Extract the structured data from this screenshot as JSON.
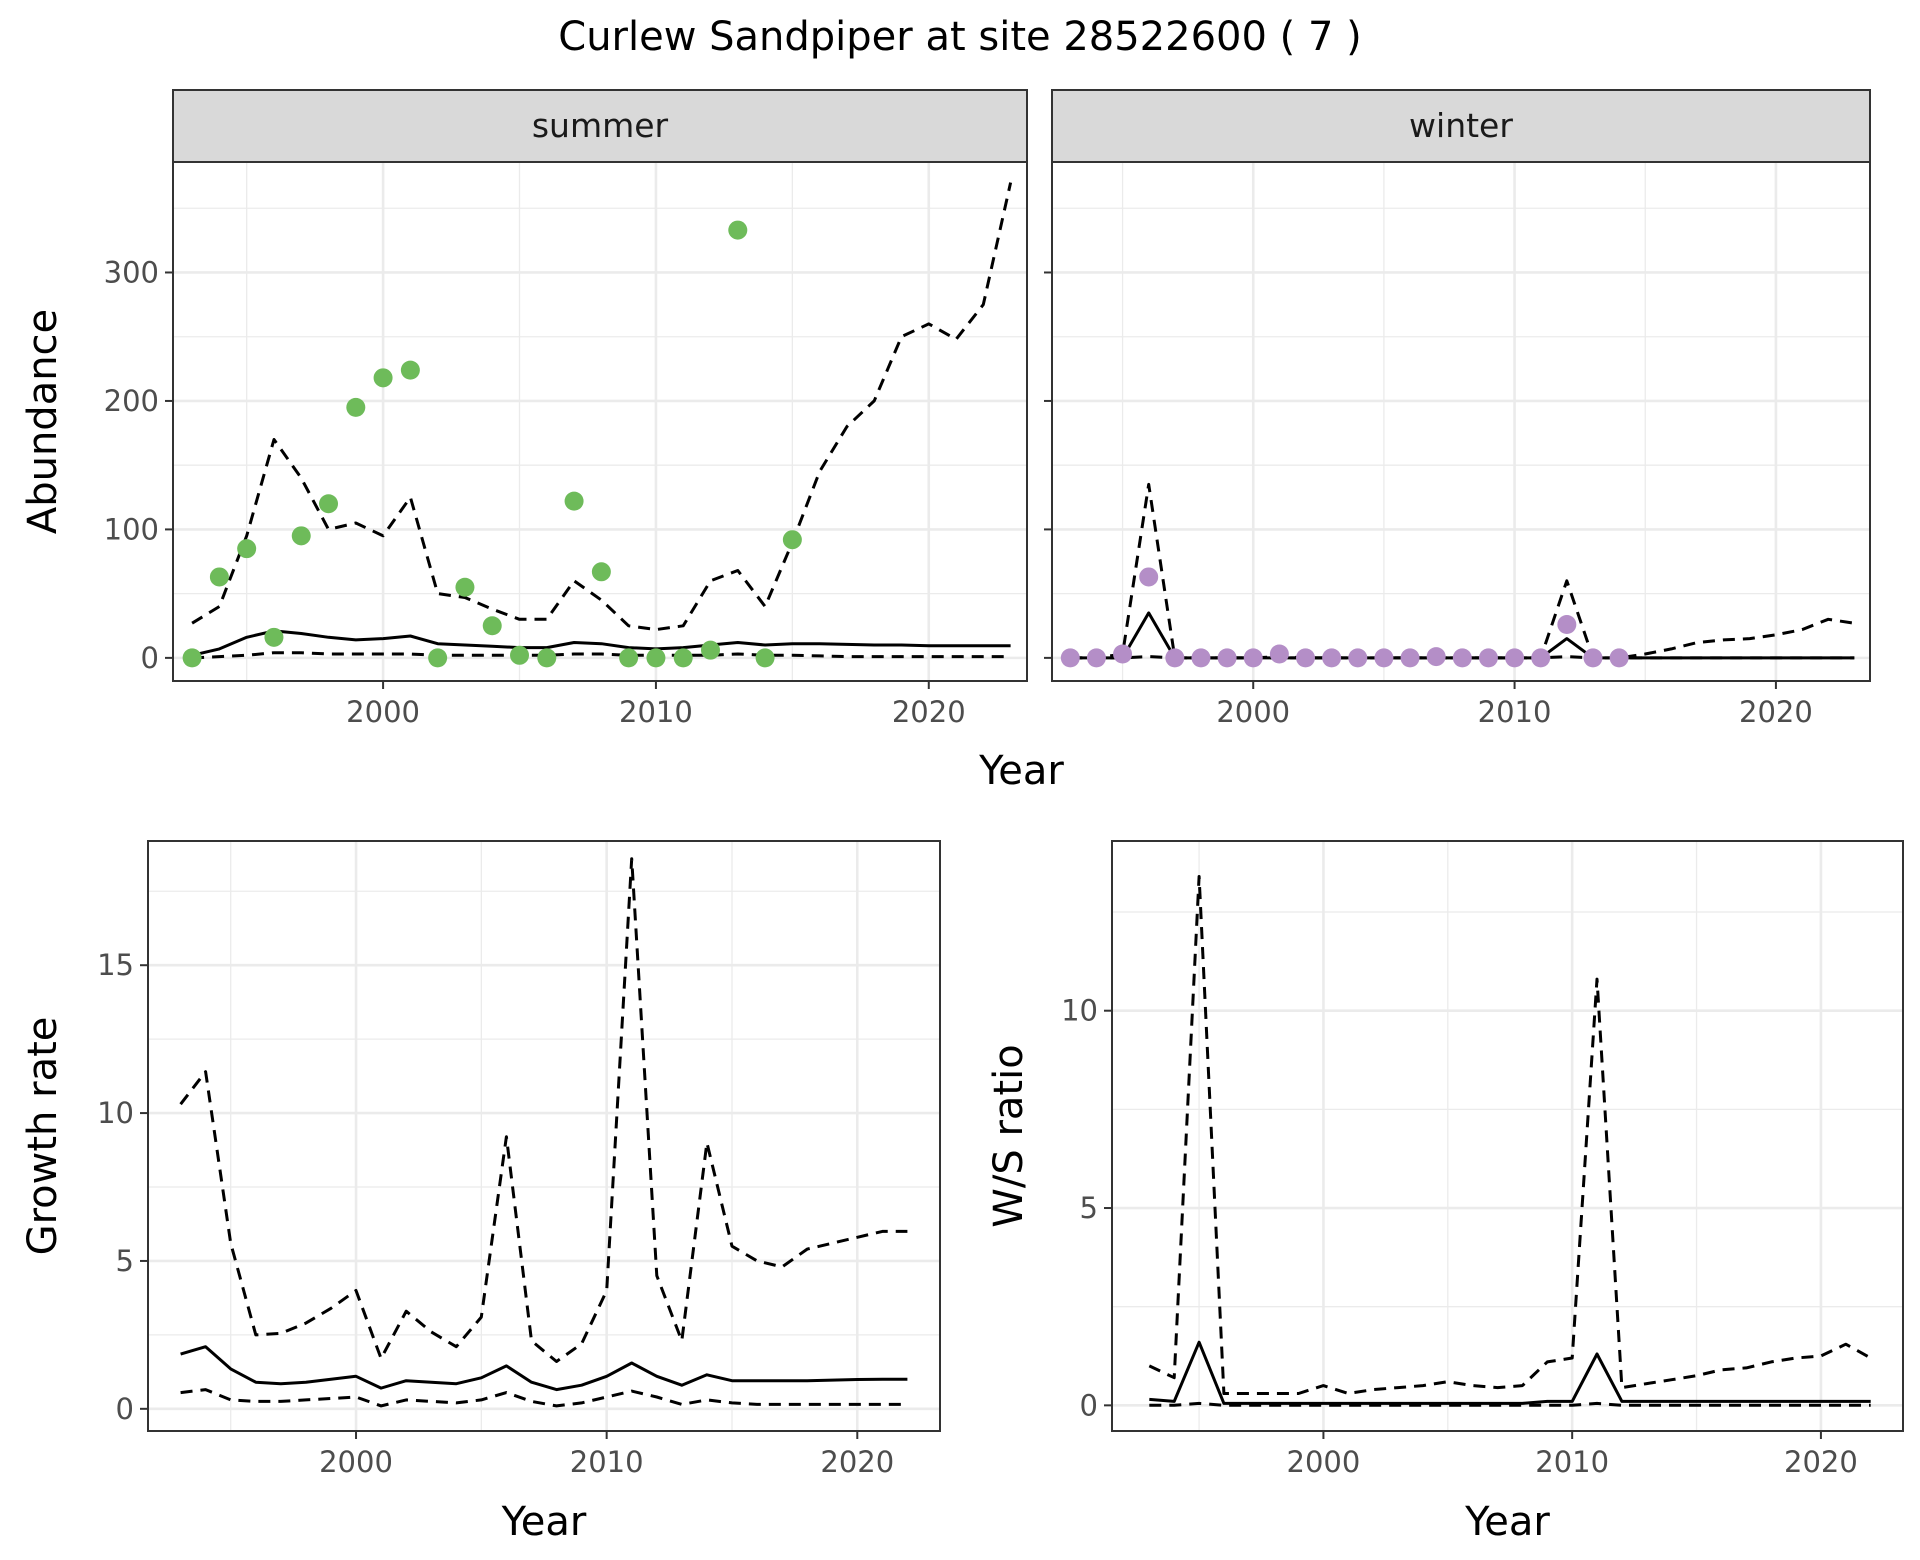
{
  "title": "Curlew Sandpiper at site 28522600 ( 7 )",
  "colors": {
    "summer_points": "#6ebb5a",
    "winter_points": "#b48ec7"
  },
  "chart_data": [
    {
      "id": "abundance-summer",
      "type": "line",
      "strip": "summer",
      "ylabel": "Abundance",
      "xlabel": "Year",
      "xlim": [
        1992.3,
        2023.6
      ],
      "ylim": [
        -18,
        386
      ],
      "xticks": [
        2000,
        2010,
        2020
      ],
      "yticks": [
        0,
        100,
        200,
        300
      ],
      "ytick_labels": [
        "0",
        "100",
        "200",
        "300"
      ],
      "points": {
        "x": [
          1993,
          1994,
          1995,
          1996,
          1997,
          1998,
          1999,
          2000,
          2001,
          2002,
          2003,
          2004,
          2005,
          2006,
          2007,
          2008,
          2009,
          2010,
          2011,
          2012,
          2013,
          2014,
          2015
        ],
        "y": [
          0,
          63,
          85,
          16,
          95,
          120,
          195,
          218,
          224,
          0,
          55,
          25,
          2,
          0,
          122,
          67,
          0,
          0,
          0,
          6,
          333,
          0,
          92
        ]
      },
      "series": [
        {
          "style": "solid",
          "x": [
            1993,
            1994,
            1995,
            1996,
            1997,
            1998,
            1999,
            2000,
            2001,
            2002,
            2003,
            2004,
            2005,
            2006,
            2007,
            2008,
            2009,
            2010,
            2011,
            2012,
            2013,
            2014,
            2015,
            2016,
            2017,
            2018,
            2019,
            2020,
            2021,
            2022,
            2023
          ],
          "y": [
            2,
            7,
            16,
            21,
            19,
            16,
            14,
            15,
            17,
            11,
            10,
            9,
            8,
            8,
            12,
            11,
            8,
            7,
            8,
            10,
            12,
            10,
            11,
            11,
            10.5,
            10,
            10,
            9.5,
            9.5,
            9.5,
            9.5
          ]
        },
        {
          "style": "dashed",
          "x": [
            1993,
            1994,
            1995,
            1996,
            1997,
            1998,
            1999,
            2000,
            2001,
            2002,
            2003,
            2004,
            2005,
            2006,
            2007,
            2008,
            2009,
            2010,
            2011,
            2012,
            2013,
            2014,
            2015,
            2016,
            2017,
            2018,
            2019,
            2020,
            2021,
            2022,
            2023
          ],
          "y": [
            27,
            40,
            95,
            170,
            140,
            100,
            105,
            95,
            125,
            50,
            47,
            38,
            30,
            30,
            60,
            45,
            25,
            22,
            25,
            60,
            68,
            40,
            90,
            145,
            180,
            200,
            250,
            260,
            248,
            275,
            370
          ]
        },
        {
          "style": "dashed",
          "x": [
            1993,
            1994,
            1995,
            1996,
            1997,
            1998,
            1999,
            2000,
            2001,
            2002,
            2003,
            2004,
            2005,
            2006,
            2007,
            2008,
            2009,
            2010,
            2011,
            2012,
            2013,
            2014,
            2015,
            2016,
            2017,
            2018,
            2019,
            2020,
            2021,
            2022,
            2023
          ],
          "y": [
            0,
            1,
            2,
            4,
            4,
            3,
            3,
            3,
            3,
            2,
            2,
            2,
            2,
            2,
            3,
            3,
            2,
            2,
            2,
            2,
            3,
            2,
            2,
            1.5,
            1,
            1,
            1,
            1,
            1,
            1,
            1
          ]
        }
      ]
    },
    {
      "id": "abundance-winter",
      "type": "line",
      "strip": "winter",
      "ylabel": "",
      "xlabel": "",
      "xlim": [
        1992.3,
        2023.6
      ],
      "ylim": [
        -18,
        386
      ],
      "xticks": [
        2000,
        2010,
        2020
      ],
      "yticks": [
        0,
        100,
        200,
        300
      ],
      "ytick_labels": [],
      "points": {
        "x": [
          1993,
          1994,
          1995,
          1996,
          1997,
          1998,
          1999,
          2000,
          2001,
          2002,
          2003,
          2004,
          2005,
          2006,
          2007,
          2008,
          2009,
          2010,
          2011,
          2012,
          2013,
          2014
        ],
        "y": [
          0,
          0,
          3,
          63,
          0,
          0,
          0,
          0,
          3,
          0,
          0,
          0,
          0,
          0,
          1,
          0,
          0,
          0,
          0,
          26,
          0,
          0
        ]
      },
      "series": [
        {
          "style": "solid",
          "x": [
            1993,
            1994,
            1995,
            1996,
            1997,
            1998,
            1999,
            2000,
            2001,
            2002,
            2003,
            2004,
            2005,
            2006,
            2007,
            2008,
            2009,
            2010,
            2011,
            2012,
            2013,
            2014,
            2015,
            2016,
            2017,
            2018,
            2019,
            2020,
            2021,
            2022,
            2023
          ],
          "y": [
            0,
            0,
            0,
            35,
            0,
            0,
            0,
            0,
            0,
            0,
            0,
            0,
            0,
            0,
            0,
            0,
            0,
            0,
            0,
            15,
            0,
            0,
            0,
            0,
            0,
            0,
            0,
            0,
            0,
            0,
            0
          ]
        },
        {
          "style": "dashed",
          "x": [
            1993,
            1994,
            1995,
            1996,
            1997,
            1998,
            1999,
            2000,
            2001,
            2002,
            2003,
            2004,
            2005,
            2006,
            2007,
            2008,
            2009,
            2010,
            2011,
            2012,
            2013,
            2014,
            2015,
            2016,
            2017,
            2018,
            2019,
            2020,
            2021,
            2022,
            2023
          ],
          "y": [
            0,
            0,
            3,
            135,
            0,
            0,
            0,
            0,
            1,
            0,
            0,
            0,
            0,
            0,
            0,
            0,
            0,
            0,
            0,
            60,
            0,
            0,
            3,
            7,
            12,
            14,
            15,
            18,
            22,
            30,
            27
          ]
        },
        {
          "style": "dashed",
          "x": [
            1993,
            1994,
            1995,
            1996,
            1997,
            1998,
            1999,
            2000,
            2001,
            2002,
            2003,
            2004,
            2005,
            2006,
            2007,
            2008,
            2009,
            2010,
            2011,
            2012,
            2013,
            2014,
            2015,
            2016,
            2017,
            2018,
            2019,
            2020,
            2021,
            2022,
            2023
          ],
          "y": [
            0,
            0,
            0,
            1,
            0,
            0,
            0,
            0,
            0,
            0,
            0,
            0,
            0,
            0,
            0,
            0,
            0,
            0,
            0,
            1,
            0,
            0,
            0,
            0,
            0,
            0,
            0,
            0,
            0,
            0,
            0
          ]
        }
      ]
    },
    {
      "id": "growth-rate",
      "type": "line",
      "ylabel": "Growth rate",
      "xlabel": "Year",
      "xlim": [
        1991.7,
        2023.3
      ],
      "ylim": [
        -0.75,
        19.2
      ],
      "xticks": [
        2000,
        2010,
        2020
      ],
      "yticks": [
        0,
        5,
        10,
        15
      ],
      "ytick_labels": [
        "0",
        "5",
        "10",
        "15"
      ],
      "series": [
        {
          "style": "solid",
          "x": [
            1993,
            1994,
            1995,
            1996,
            1997,
            1998,
            1999,
            2000,
            2001,
            2002,
            2003,
            2004,
            2005,
            2006,
            2007,
            2008,
            2009,
            2010,
            2011,
            2012,
            2013,
            2014,
            2015,
            2016,
            2017,
            2018,
            2019,
            2020,
            2021,
            2022
          ],
          "y": [
            1.85,
            2.1,
            1.35,
            0.9,
            0.85,
            0.9,
            1.0,
            1.1,
            0.7,
            0.95,
            0.9,
            0.85,
            1.05,
            1.45,
            0.9,
            0.65,
            0.8,
            1.1,
            1.55,
            1.1,
            0.8,
            1.15,
            0.95,
            0.95,
            0.95,
            0.95,
            0.97,
            0.99,
            1.0,
            1.0
          ]
        },
        {
          "style": "dashed",
          "x": [
            1993,
            1994,
            1995,
            1996,
            1997,
            1998,
            1999,
            2000,
            2001,
            2002,
            2003,
            2004,
            2005,
            2006,
            2007,
            2008,
            2009,
            2010,
            2011,
            2012,
            2013,
            2014,
            2015,
            2016,
            2017,
            2018,
            2019,
            2020,
            2021,
            2022
          ],
          "y": [
            10.3,
            11.4,
            5.6,
            2.5,
            2.55,
            2.9,
            3.4,
            4.0,
            1.7,
            3.3,
            2.6,
            2.1,
            3.1,
            9.2,
            2.3,
            1.6,
            2.2,
            4.0,
            18.6,
            4.5,
            2.3,
            9.0,
            5.5,
            5.0,
            4.8,
            5.4,
            5.6,
            5.8,
            6.0,
            6.0
          ]
        },
        {
          "style": "dashed",
          "x": [
            1993,
            1994,
            1995,
            1996,
            1997,
            1998,
            1999,
            2000,
            2001,
            2002,
            2003,
            2004,
            2005,
            2006,
            2007,
            2008,
            2009,
            2010,
            2011,
            2012,
            2013,
            2014,
            2015,
            2016,
            2017,
            2018,
            2019,
            2020,
            2021,
            2022
          ],
          "y": [
            0.55,
            0.65,
            0.3,
            0.25,
            0.25,
            0.3,
            0.35,
            0.4,
            0.1,
            0.3,
            0.25,
            0.2,
            0.3,
            0.55,
            0.25,
            0.1,
            0.2,
            0.4,
            0.6,
            0.4,
            0.15,
            0.3,
            0.2,
            0.15,
            0.15,
            0.15,
            0.15,
            0.15,
            0.15,
            0.15
          ]
        }
      ]
    },
    {
      "id": "ws-ratio",
      "type": "line",
      "ylabel": "W/S ratio",
      "xlabel": "Year",
      "xlim": [
        1991.5,
        2023.3
      ],
      "ylim": [
        -0.65,
        14.3
      ],
      "xticks": [
        2000,
        2010,
        2020
      ],
      "yticks": [
        0,
        5,
        10
      ],
      "ytick_labels": [
        "0",
        "5",
        "10"
      ],
      "series": [
        {
          "style": "solid",
          "x": [
            1993,
            1994,
            1995,
            1996,
            1997,
            1998,
            1999,
            2000,
            2001,
            2002,
            2003,
            2004,
            2005,
            2006,
            2007,
            2008,
            2009,
            2010,
            2011,
            2012,
            2013,
            2014,
            2015,
            2016,
            2017,
            2018,
            2019,
            2020,
            2021,
            2022
          ],
          "y": [
            0.15,
            0.1,
            1.6,
            0.05,
            0.05,
            0.05,
            0.05,
            0.05,
            0.05,
            0.05,
            0.05,
            0.05,
            0.05,
            0.05,
            0.05,
            0.05,
            0.1,
            0.1,
            1.3,
            0.1,
            0.1,
            0.1,
            0.1,
            0.1,
            0.1,
            0.1,
            0.1,
            0.1,
            0.1,
            0.1
          ]
        },
        {
          "style": "dashed",
          "x": [
            1993,
            1994,
            1995,
            1996,
            1997,
            1998,
            1999,
            2000,
            2001,
            2002,
            2003,
            2004,
            2005,
            2006,
            2007,
            2008,
            2009,
            2010,
            2011,
            2012,
            2013,
            2014,
            2015,
            2016,
            2017,
            2018,
            2019,
            2020,
            2021,
            2022
          ],
          "y": [
            1.0,
            0.7,
            13.4,
            0.3,
            0.3,
            0.3,
            0.3,
            0.5,
            0.3,
            0.4,
            0.45,
            0.5,
            0.6,
            0.5,
            0.45,
            0.5,
            1.1,
            1.2,
            10.8,
            0.45,
            0.55,
            0.65,
            0.75,
            0.9,
            0.95,
            1.1,
            1.2,
            1.25,
            1.55,
            1.2
          ]
        },
        {
          "style": "dashed",
          "x": [
            1993,
            1994,
            1995,
            1996,
            1997,
            1998,
            1999,
            2000,
            2001,
            2002,
            2003,
            2004,
            2005,
            2006,
            2007,
            2008,
            2009,
            2010,
            2011,
            2012,
            2013,
            2014,
            2015,
            2016,
            2017,
            2018,
            2019,
            2020,
            2021,
            2022
          ],
          "y": [
            0,
            0,
            0.05,
            0,
            0,
            0,
            0,
            0,
            0,
            0,
            0,
            0,
            0,
            0,
            0,
            0,
            0,
            0,
            0.05,
            0,
            0,
            0,
            0,
            0,
            0,
            0,
            0,
            0,
            0,
            0
          ]
        }
      ]
    }
  ]
}
